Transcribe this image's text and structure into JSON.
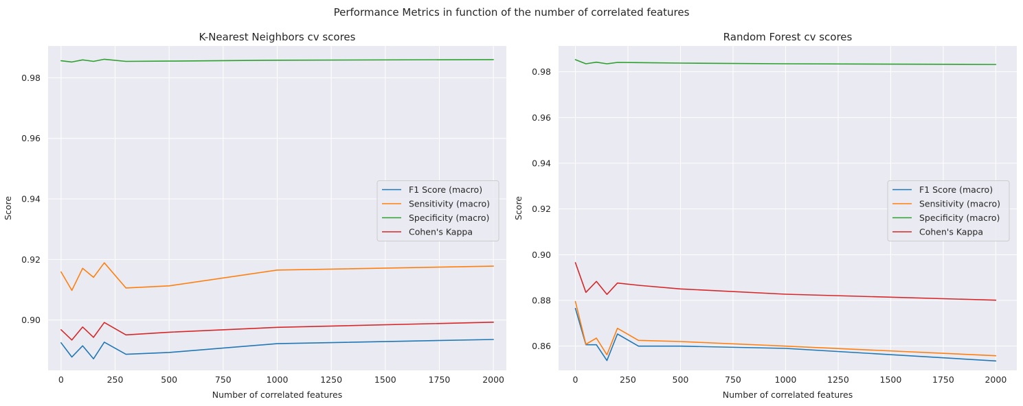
{
  "figure": {
    "suptitle": "Performance Metrics in function of the number of correlated features"
  },
  "chart_data": [
    {
      "type": "line",
      "title": "K-Nearest Neighbors cv scores",
      "xlabel": "Number of correlated features",
      "ylabel": "Score",
      "xlim": [
        -60,
        2060
      ],
      "ylim": [
        0.8834,
        0.9905
      ],
      "xticks": [
        0,
        250,
        500,
        750,
        1000,
        1250,
        1500,
        1750,
        2000
      ],
      "yticks": [
        0.9,
        0.92,
        0.94,
        0.96,
        0.98
      ],
      "yticklabels": [
        "0.90",
        "0.92",
        "0.94",
        "0.96",
        "0.98"
      ],
      "grid": true,
      "legend_position": "center-right",
      "x": [
        0,
        50,
        100,
        150,
        200,
        300,
        500,
        1000,
        2000
      ],
      "series": [
        {
          "name": "F1 Score (macro)",
          "color": "#1f77b4",
          "values": [
            0.8925,
            0.8878,
            0.8915,
            0.8872,
            0.8927,
            0.8887,
            0.8893,
            0.8922,
            0.8936
          ]
        },
        {
          "name": "Sensitivity (macro)",
          "color": "#ff7f0e",
          "values": [
            0.9159,
            0.9098,
            0.9171,
            0.9141,
            0.9189,
            0.9106,
            0.9113,
            0.9165,
            0.9178
          ]
        },
        {
          "name": "Specificity (macro)",
          "color": "#2ca02c",
          "values": [
            0.9856,
            0.9852,
            0.9859,
            0.9854,
            0.9861,
            0.9854,
            0.9855,
            0.9858,
            0.986
          ]
        },
        {
          "name": "Cohen's Kappa",
          "color": "#d62728",
          "values": [
            0.8968,
            0.8934,
            0.8977,
            0.8943,
            0.8992,
            0.8951,
            0.896,
            0.8976,
            0.8993
          ]
        }
      ]
    },
    {
      "type": "line",
      "title": "Random Forest cv scores",
      "xlabel": "Number of correlated features",
      "ylabel": "Score",
      "xlim": [
        -80,
        2100
      ],
      "ylim": [
        0.8494,
        0.9913
      ],
      "xticks": [
        0,
        250,
        500,
        750,
        1000,
        1250,
        1500,
        1750,
        2000
      ],
      "yticks": [
        0.86,
        0.88,
        0.9,
        0.92,
        0.94,
        0.96,
        0.98
      ],
      "yticklabels": [
        "0.86",
        "0.88",
        "0.90",
        "0.92",
        "0.94",
        "0.96",
        "0.98"
      ],
      "grid": true,
      "legend_position": "center-right",
      "x": [
        0,
        50,
        100,
        150,
        200,
        300,
        500,
        1000,
        2000
      ],
      "series": [
        {
          "name": "F1 Score (macro)",
          "color": "#1f77b4",
          "values": [
            0.8765,
            0.8606,
            0.8606,
            0.8537,
            0.8653,
            0.86,
            0.86,
            0.859,
            0.8535
          ]
        },
        {
          "name": "Sensitivity (macro)",
          "color": "#ff7f0e",
          "values": [
            0.8795,
            0.8608,
            0.8635,
            0.8562,
            0.8678,
            0.8625,
            0.862,
            0.86,
            0.8558
          ]
        },
        {
          "name": "Specificity (macro)",
          "color": "#2ca02c",
          "values": [
            0.9853,
            0.9835,
            0.9842,
            0.9835,
            0.9841,
            0.984,
            0.9838,
            0.9835,
            0.9832
          ]
        },
        {
          "name": "Cohen's Kappa",
          "color": "#d62728",
          "values": [
            0.8965,
            0.8835,
            0.8883,
            0.8826,
            0.8876,
            0.8866,
            0.885,
            0.8827,
            0.8801
          ]
        }
      ]
    }
  ]
}
